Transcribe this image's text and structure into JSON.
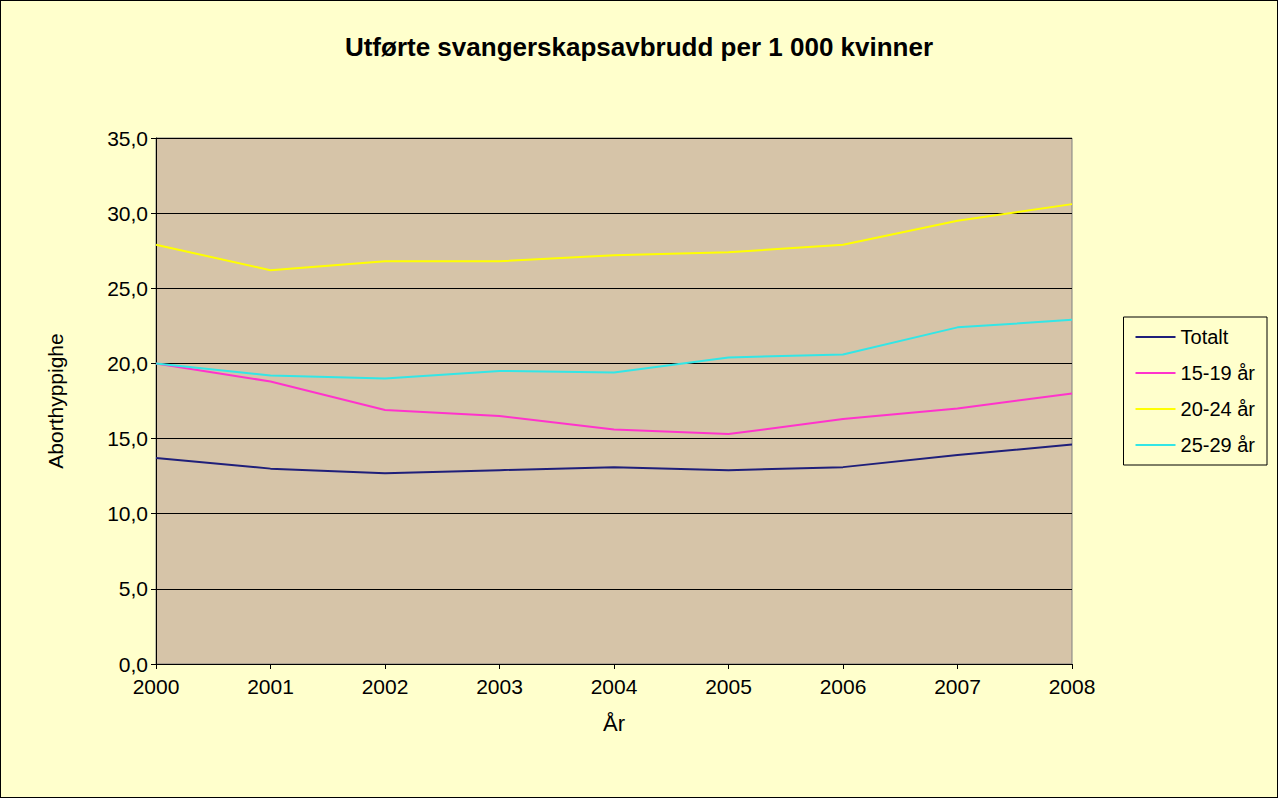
{
  "chart_data": {
    "type": "line",
    "title": "Utførte svangerskapsavbrudd per 1 000 kvinner",
    "x_label": "År",
    "y_label": "Aborthyppighe",
    "categories": [
      "2000",
      "2001",
      "2002",
      "2003",
      "2004",
      "2005",
      "2006",
      "2007",
      "2008"
    ],
    "series": [
      {
        "name": "Totalt",
        "color": "#1f1f7a",
        "values": [
          13.7,
          13.0,
          12.7,
          12.9,
          13.1,
          12.9,
          13.1,
          13.9,
          14.6
        ]
      },
      {
        "name": "15-19 år",
        "color": "#ff33cc",
        "values": [
          20.0,
          18.8,
          16.9,
          16.5,
          15.6,
          15.3,
          16.3,
          17.0,
          18.0
        ]
      },
      {
        "name": "20-24 år",
        "color": "#ffff00",
        "values": [
          27.9,
          26.2,
          26.8,
          26.8,
          27.2,
          27.4,
          27.9,
          29.5,
          30.6
        ]
      },
      {
        "name": "25-29 år",
        "color": "#33e6e6",
        "values": [
          20.0,
          19.2,
          19.0,
          19.5,
          19.4,
          20.4,
          20.6,
          22.4,
          22.9
        ]
      }
    ],
    "ylim": [
      0,
      35
    ],
    "yticks": [
      {
        "value": 0,
        "label": "0,0"
      },
      {
        "value": 5,
        "label": "5,0"
      },
      {
        "value": 10,
        "label": "10,0"
      },
      {
        "value": 15,
        "label": "15,0"
      },
      {
        "value": 20,
        "label": "20,0"
      },
      {
        "value": 25,
        "label": "25,0"
      },
      {
        "value": 30,
        "label": "30,0"
      },
      {
        "value": 35,
        "label": "35,0"
      }
    ],
    "grid": true,
    "legend": "right"
  }
}
